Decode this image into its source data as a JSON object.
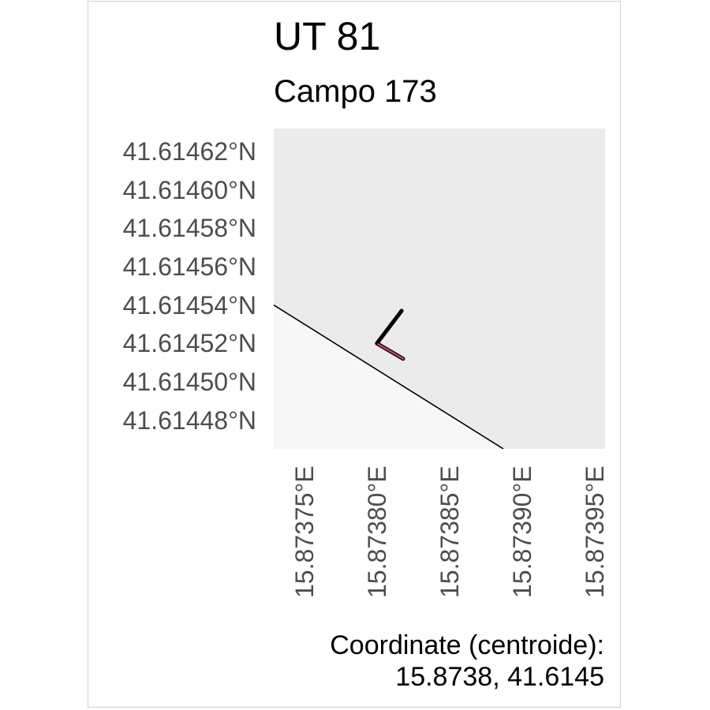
{
  "map": {
    "title": "UT 81",
    "subtitle": "Campo 173",
    "lat_ticks": [
      "41.61462°N",
      "41.61460°N",
      "41.61458°N",
      "41.61456°N",
      "41.61454°N",
      "41.61452°N",
      "41.61450°N",
      "41.61448°N"
    ],
    "lon_ticks": [
      "15.87375°E",
      "15.87380°E",
      "15.87385°E",
      "15.87390°E",
      "15.87395°E"
    ],
    "caption_line1": "Coordinate (centroide):",
    "caption_line2": "15.8738, 41.6145",
    "colors": {
      "panel_fill": "#ebebeb",
      "parcel_fill": "#f7f7f7",
      "boundary": "#000000",
      "marker_outline": "#000000",
      "marker_fill": "#c0475a",
      "tick_text": "#4d4d4d",
      "frame_border": "#cfcfcf"
    },
    "chart_data": {
      "type": "map",
      "title": "UT 81",
      "subtitle": "Campo 173",
      "xlabel": "",
      "ylabel": "",
      "xlim": [
        15.87373,
        15.873958
      ],
      "ylim": [
        41.614465,
        41.614632
      ],
      "x_ticks": [
        15.87375,
        15.8738,
        15.87385,
        15.8739,
        15.87395
      ],
      "y_ticks": [
        41.61462,
        41.6146,
        41.61458,
        41.61456,
        41.61454,
        41.61452,
        41.6145,
        41.61448
      ],
      "grid": false,
      "boundary_line": [
        [
          15.87373,
          41.61454
        ],
        [
          15.873888,
          41.614465
        ]
      ],
      "marker_path": [
        [
          15.873818,
          41.614537
        ],
        [
          15.873801,
          41.61452
        ],
        [
          15.873819,
          41.614512
        ]
      ],
      "centroid": [
        15.8738,
        41.6145
      ]
    }
  }
}
